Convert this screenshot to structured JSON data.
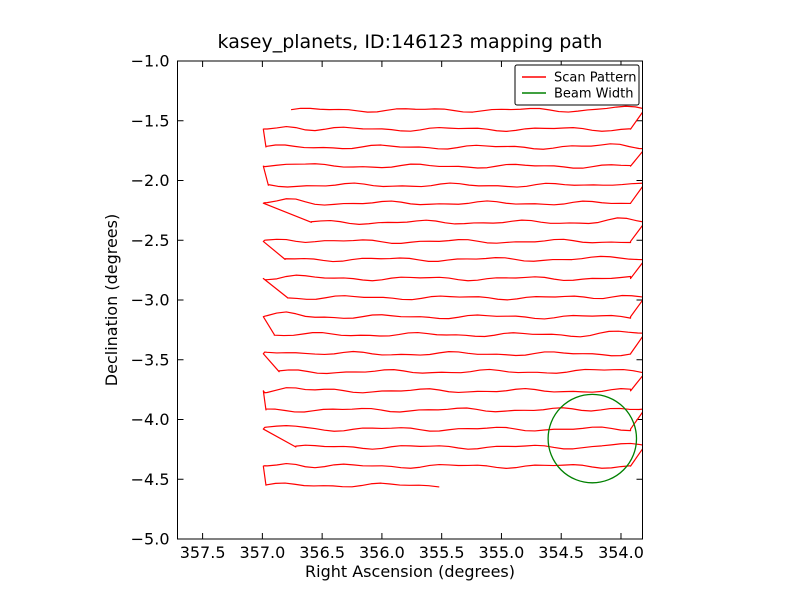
{
  "figure": {
    "title": "kasey_planets, ID:146123 mapping path",
    "xlabel": "Right Ascension (degrees)",
    "ylabel": "Declination (degrees)",
    "xtick_labels": [
      "357.5",
      "357.0",
      "356.5",
      "356.0",
      "355.5",
      "355.0",
      "354.5",
      "354.0"
    ],
    "ytick_labels": [
      "−1.0",
      "−1.5",
      "−2.0",
      "−2.5",
      "−3.0",
      "−3.5",
      "−4.0",
      "−4.5",
      "−5.0"
    ],
    "background_color": "#ffffff",
    "frame_color": "#000000"
  },
  "legend": {
    "items": [
      {
        "label": "Scan Pattern",
        "color": "#ff0000"
      },
      {
        "label": "Beam Width",
        "color": "#008000"
      }
    ]
  },
  "chart_data": {
    "type": "line",
    "title": "kasey_planets, ID:146123 mapping path",
    "xlabel": "Right Ascension (degrees)",
    "ylabel": "Declination (degrees)",
    "xlim": [
      357.71,
      353.82
    ],
    "x_inverted": true,
    "ylim": [
      -5.0,
      -1.0
    ],
    "xticks": [
      357.5,
      357.0,
      356.5,
      356.0,
      355.5,
      355.0,
      354.5,
      354.0
    ],
    "yticks": [
      -1.0,
      -1.5,
      -2.0,
      -2.5,
      -3.0,
      -3.5,
      -4.0,
      -4.5,
      -5.0
    ],
    "grid": false,
    "legend_position": "upper right",
    "series": [
      {
        "name": "Scan Pattern",
        "color": "#ff0000",
        "kind": "boustrophedon_raster",
        "description": "Continuous telescope raster scan: 21 nearly-horizontal scan rows stepping down in declination, alternating direction, joined by short turnarounds at RA ~356.98 (east end) and at the plot edge RA ~353.82 (west end).",
        "row_decs": [
          -1.41,
          -1.57,
          -1.72,
          -1.88,
          -2.04,
          -2.19,
          -2.35,
          -2.51,
          -2.66,
          -2.82,
          -2.98,
          -3.14,
          -3.29,
          -3.45,
          -3.6,
          -3.76,
          -3.92,
          -4.08,
          -4.23,
          -4.39,
          -4.55
        ],
        "row_spacing_deg": 0.157,
        "ra_east_end": 356.98,
        "ra_west_end": 353.82,
        "first_row_start_ra": 356.76,
        "last_row_end_ra": 355.52,
        "row_start_ra_offsets": [
          0.0,
          0.02,
          0.38,
          0.16,
          0.18,
          0.07,
          0.11,
          0.0,
          0.25,
          0.0
        ],
        "wobble_amplitude_deg": 0.012
      },
      {
        "name": "Beam Width",
        "color": "#008000",
        "kind": "circle",
        "center_ra": 354.24,
        "center_dec": -4.16,
        "radius_deg": 0.37
      }
    ]
  }
}
